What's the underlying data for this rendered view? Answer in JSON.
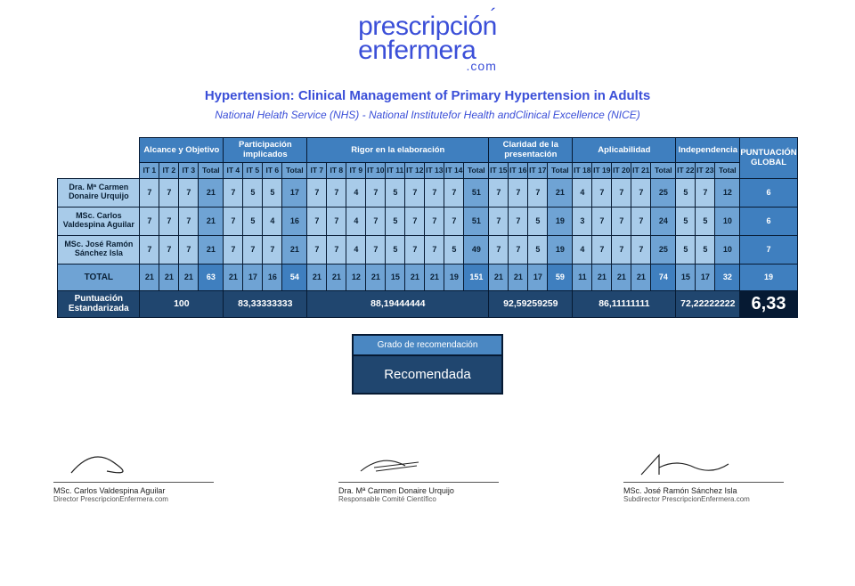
{
  "logo": {
    "line1": "prescripción",
    "line2": "enfermera",
    "suffix": ".com"
  },
  "title": "Hypertension: Clinical Management of Primary Hypertension in Adults",
  "subtitle": "National Helath Service (NHS) - National Institutefor Health andClinical Excellence (NICE)",
  "colors": {
    "brand": "#3b4fd8",
    "cat_header_bg": "#3f7fbf",
    "sub_header_bg": "#6fa3d4",
    "cell_bg": "#a8cbe9",
    "std_bg": "#20466f",
    "final_bg": "#061a33",
    "border": "#061a33"
  },
  "categories": [
    {
      "name": "Alcance y Objetivo",
      "items": [
        "IT 1",
        "IT 2",
        "IT 3"
      ],
      "std": "100"
    },
    {
      "name": "Participación implicados",
      "items": [
        "IT 4",
        "IT 5",
        "IT 6"
      ],
      "std": "83,33333333"
    },
    {
      "name": "Rigor en la elaboración",
      "items": [
        "IT 7",
        "IT 8",
        "IT 9",
        "IT 10",
        "IT 11",
        "IT 12",
        "IT 13",
        "IT 14"
      ],
      "std": "88,19444444"
    },
    {
      "name": "Claridad de la presentación",
      "items": [
        "IT 15",
        "IT 16",
        "IT 17"
      ],
      "std": "92,59259259"
    },
    {
      "name": "Aplicabilidad",
      "items": [
        "IT 18",
        "IT 19",
        "IT 20",
        "IT 21"
      ],
      "std": "86,11111111"
    },
    {
      "name": "Independencia",
      "items": [
        "IT 22",
        "IT 23"
      ],
      "std": "72,22222222"
    }
  ],
  "global_header": "PUNTUACIÓN GLOBAL",
  "total_col_label": "Total",
  "evaluators": [
    {
      "name": "Dra. Mª Carmen Donaire Urquijo",
      "scores": [
        [
          7,
          7,
          7
        ],
        [
          7,
          5,
          5
        ],
        [
          7,
          7,
          4,
          7,
          5,
          7,
          7,
          7
        ],
        [
          7,
          7,
          7
        ],
        [
          4,
          7,
          7,
          7
        ],
        [
          5,
          7
        ]
      ],
      "totals": [
        21,
        17,
        51,
        21,
        25,
        12
      ],
      "global": 6
    },
    {
      "name": "MSc. Carlos Valdespina Aguilar",
      "scores": [
        [
          7,
          7,
          7
        ],
        [
          7,
          5,
          4
        ],
        [
          7,
          7,
          4,
          7,
          5,
          7,
          7,
          7
        ],
        [
          7,
          7,
          5
        ],
        [
          3,
          7,
          7,
          7
        ],
        [
          5,
          5
        ]
      ],
      "totals": [
        21,
        16,
        51,
        19,
        24,
        10
      ],
      "global": 6
    },
    {
      "name": "MSc. José Ramón Sánchez Isla",
      "scores": [
        [
          7,
          7,
          7
        ],
        [
          7,
          7,
          7
        ],
        [
          7,
          7,
          4,
          7,
          5,
          7,
          7,
          5
        ],
        [
          7,
          7,
          5
        ],
        [
          4,
          7,
          7,
          7
        ],
        [
          5,
          5
        ]
      ],
      "totals": [
        21,
        21,
        49,
        19,
        25,
        10
      ],
      "global": 7
    }
  ],
  "total_row_label": "TOTAL",
  "totals_row": {
    "scores": [
      [
        21,
        21,
        21
      ],
      [
        21,
        17,
        16
      ],
      [
        21,
        21,
        12,
        21,
        15,
        21,
        21,
        19
      ],
      [
        21,
        21,
        17
      ],
      [
        11,
        21,
        21,
        21
      ],
      [
        15,
        17
      ]
    ],
    "totals": [
      63,
      54,
      151,
      59,
      74,
      32
    ],
    "global": 19
  },
  "std_row_label": "Puntuación Estandarizada",
  "std_final": "6,33",
  "recommendation": {
    "header": "Grado de recomendación",
    "value": "Recomendada"
  },
  "signatures": [
    {
      "name": "MSc. Carlos Valdespina Aguilar",
      "role": "Director PrescripcionEnfermera.com"
    },
    {
      "name": "Dra. Mª Carmen Donaire Urquijo",
      "role": "Responsable Comité Científico"
    },
    {
      "name": "MSc. José Ramón Sánchez Isla",
      "role": "Subdirector PrescripcionEnfermera.com"
    }
  ]
}
